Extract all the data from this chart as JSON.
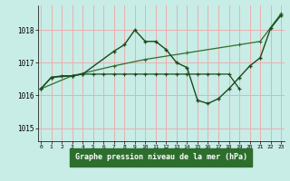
{
  "title": "Graphe pression niveau de la mer (hPa)",
  "bg_color": "#c8ece6",
  "label_bg_color": "#2d6e2d",
  "label_text_color": "#ffffff",
  "grid_color": "#e8b0b0",
  "line_color1": "#2d6e2d",
  "line_color2": "#1a4a1a",
  "ylim": [
    1014.6,
    1018.75
  ],
  "yticks": [
    1015,
    1016,
    1017,
    1018
  ],
  "xlim": [
    -0.3,
    23.3
  ],
  "xticks": [
    0,
    1,
    2,
    3,
    4,
    5,
    6,
    7,
    8,
    9,
    10,
    11,
    12,
    13,
    14,
    15,
    16,
    17,
    18,
    19,
    20,
    21,
    22,
    23
  ],
  "line_smooth": {
    "x": [
      0,
      3,
      7,
      10,
      14,
      19,
      21,
      23
    ],
    "y": [
      1016.2,
      1016.6,
      1016.9,
      1017.1,
      1017.3,
      1017.55,
      1017.65,
      1018.5
    ]
  },
  "line_zigzag": {
    "x": [
      0,
      1,
      3,
      4,
      7,
      8,
      9,
      10,
      11,
      12,
      13,
      14,
      15,
      16,
      17,
      18,
      19,
      20,
      21,
      22,
      23
    ],
    "y": [
      1016.2,
      1016.55,
      1016.6,
      1016.65,
      1017.35,
      1017.55,
      1018.0,
      1017.65,
      1017.65,
      1017.4,
      1017.0,
      1016.85,
      1015.85,
      1015.75,
      1015.9,
      1016.2,
      1016.55,
      1016.9,
      1017.15,
      1018.05,
      1018.45
    ]
  },
  "line_flat": {
    "x": [
      0,
      1,
      2,
      3,
      4,
      5,
      6,
      7,
      8,
      9,
      10,
      11,
      12,
      13,
      14,
      15,
      16,
      17,
      18,
      19
    ],
    "y": [
      1016.2,
      1016.55,
      1016.6,
      1016.6,
      1016.65,
      1016.65,
      1016.65,
      1016.65,
      1016.65,
      1016.65,
      1016.65,
      1016.65,
      1016.65,
      1016.65,
      1016.65,
      1016.65,
      1016.65,
      1016.65,
      1016.65,
      1016.2
    ]
  }
}
